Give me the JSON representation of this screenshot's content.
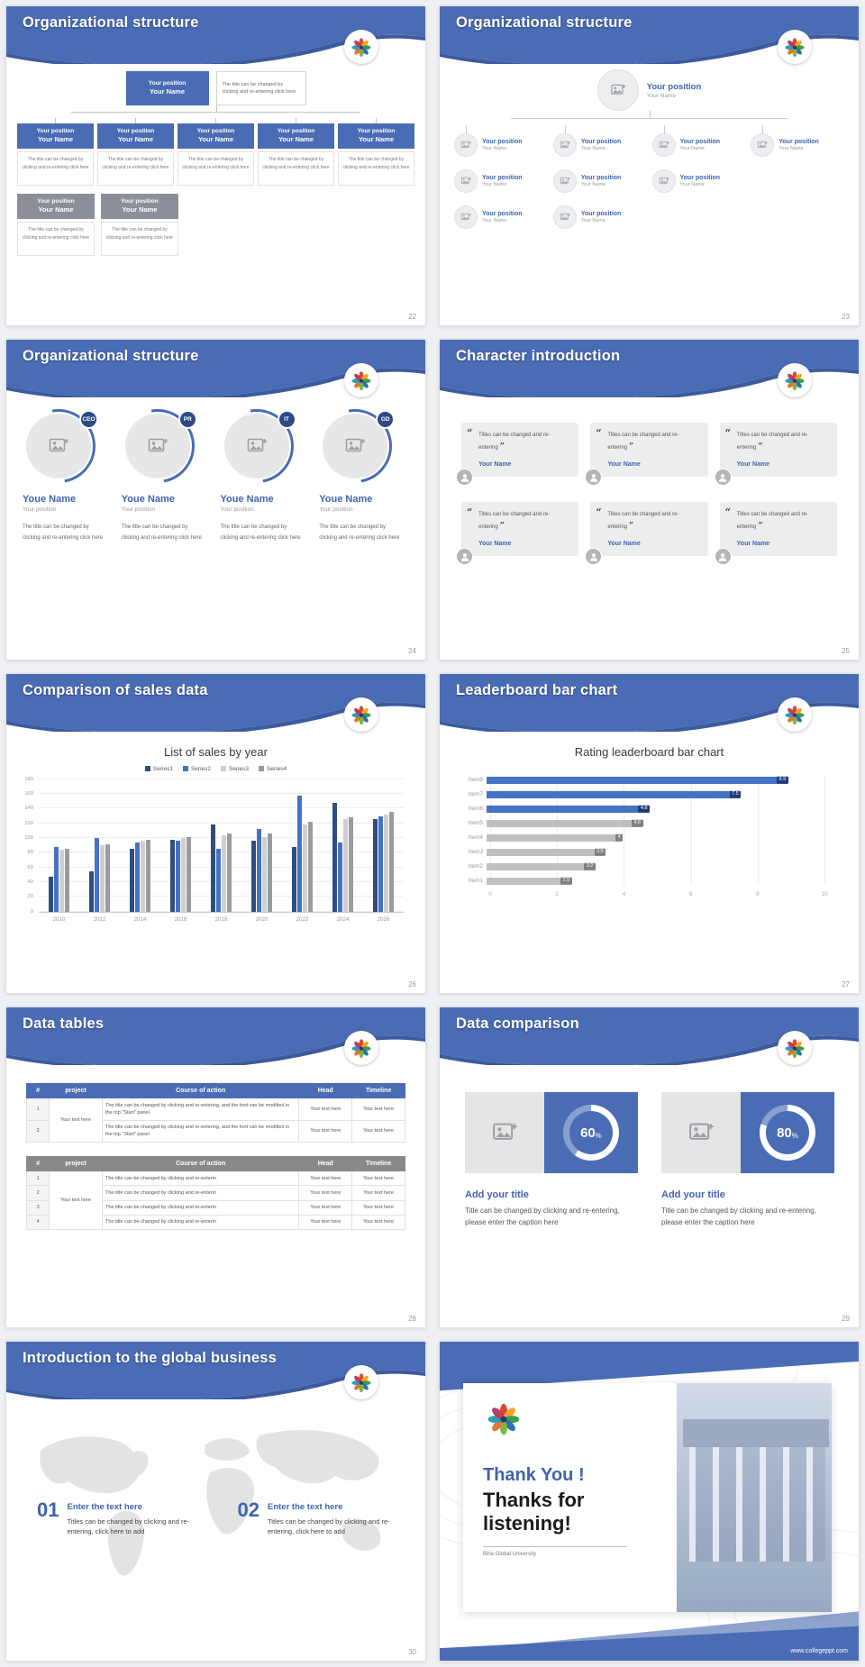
{
  "common": {
    "your_position": "Your position",
    "your_name": "Your Name",
    "desc_small": "The title can be changed by clicking and re-entering click here",
    "your_text_here": "Your text here",
    "open_quote": "“",
    "close_quote": "”",
    "percent_sign": "%"
  },
  "slides": [
    {
      "number": "22",
      "title": "Organizational structure",
      "side_note": "The title can be changed by clicking and re-entering click here"
    },
    {
      "number": "23",
      "title": "Organizational structure"
    },
    {
      "number": "24",
      "title": "Organizational structure",
      "members": [
        {
          "badge": "CEO"
        },
        {
          "badge": "PR"
        },
        {
          "badge": "IT"
        },
        {
          "badge": "GD"
        }
      ],
      "member_name": "Youe Name",
      "member_position": "Your position",
      "member_desc": "The title can be changed by clicking and re-entering click here"
    },
    {
      "number": "25",
      "title": "Character introduction",
      "card_quote": "Titles can be changed and re-entering",
      "card_name": "Your Name"
    },
    {
      "number": "26",
      "title": "Comparison of sales data",
      "chart_title": "List of sales by year"
    },
    {
      "number": "27",
      "title": "Leaderboard bar chart",
      "chart_title": "Rating leaderboard bar chart"
    },
    {
      "number": "28",
      "title": "Data tables",
      "table1": {
        "headers": [
          "#",
          "project",
          "Course of action",
          "Head",
          "Timeline"
        ],
        "row_nums": [
          "1",
          "2"
        ],
        "course_text": "The title can be changed by clicking and re-entering, and the font can be modified in the top \"Start\" panel"
      },
      "table2": {
        "headers": [
          "#",
          "project",
          "Course of action",
          "Head",
          "Timeline"
        ],
        "row_nums": [
          "1",
          "2",
          "3",
          "4"
        ],
        "course_text": "The title can be changed by clicking and re-enterin"
      }
    },
    {
      "number": "29",
      "title": "Data comparison",
      "panels": [
        {
          "percent": 60
        },
        {
          "percent": 80
        }
      ],
      "panel_title": "Add your title",
      "panel_caption": "Title can be changed by clicking and re-entering, please enter the caption here"
    },
    {
      "number": "30",
      "title": "Introduction to the global business",
      "points": [
        {
          "num": "01",
          "title": "Enter the text here",
          "text": "Titles can be changed by clicking and re-entering, click here to add"
        },
        {
          "num": "02",
          "title": "Enter the text here",
          "text": "Titles can be changed by clicking and re-entering, click here to add"
        }
      ]
    },
    {
      "title_line1": "Thank You !",
      "title_line2": "Thanks for listening!",
      "subtitle": "Birla Global University",
      "footer_url": "www.collegeppt.com"
    }
  ],
  "chart_data": [
    {
      "type": "bar",
      "title": "List of sales by year",
      "categories": [
        "2010",
        "2012",
        "2014",
        "2016",
        "2018",
        "2020",
        "2022",
        "2024",
        "2026"
      ],
      "series": [
        {
          "name": "Series1",
          "color": "#2e4d80",
          "values": [
            48,
            55,
            86,
            98,
            118,
            96,
            88,
            148,
            126
          ]
        },
        {
          "name": "Series2",
          "color": "#4472c4",
          "values": [
            88,
            100,
            94,
            96,
            86,
            112,
            158,
            94,
            130
          ]
        },
        {
          "name": "Series3",
          "color": "#cfcfcf",
          "values": [
            84,
            90,
            96,
            100,
            104,
            102,
            118,
            126,
            132
          ]
        },
        {
          "name": "Series4",
          "color": "#9b9b9b",
          "values": [
            86,
            92,
            98,
            102,
            106,
            106,
            122,
            128,
            136
          ]
        }
      ],
      "ylim": [
        0,
        180
      ],
      "yticks": [
        0,
        20,
        40,
        60,
        80,
        100,
        120,
        140,
        160,
        180
      ],
      "legend_position": "top",
      "grid": true
    },
    {
      "type": "bar",
      "orientation": "horizontal",
      "title": "Rating leaderboard bar chart",
      "categories": [
        "Item8",
        "Item7",
        "Item6",
        "Item5",
        "Item4",
        "Item3",
        "Item2",
        "Item1"
      ],
      "values": [
        8.9,
        7.5,
        4.8,
        4.6,
        4,
        3.5,
        3.2,
        2.5
      ],
      "bar_colors": [
        "#4472c4",
        "#4472c4",
        "#4472c4",
        "#c0c0c0",
        "#c0c0c0",
        "#c0c0c0",
        "#c0c0c0",
        "#c0c0c0"
      ],
      "label_colors": [
        "#1f3c73",
        "#1f3c73",
        "#1f3c73",
        "#808080",
        "#808080",
        "#808080",
        "#808080",
        "#808080"
      ],
      "xlim": [
        0,
        10
      ],
      "xticks": [
        0,
        2,
        4,
        6,
        8,
        10
      ],
      "grid": true
    }
  ]
}
